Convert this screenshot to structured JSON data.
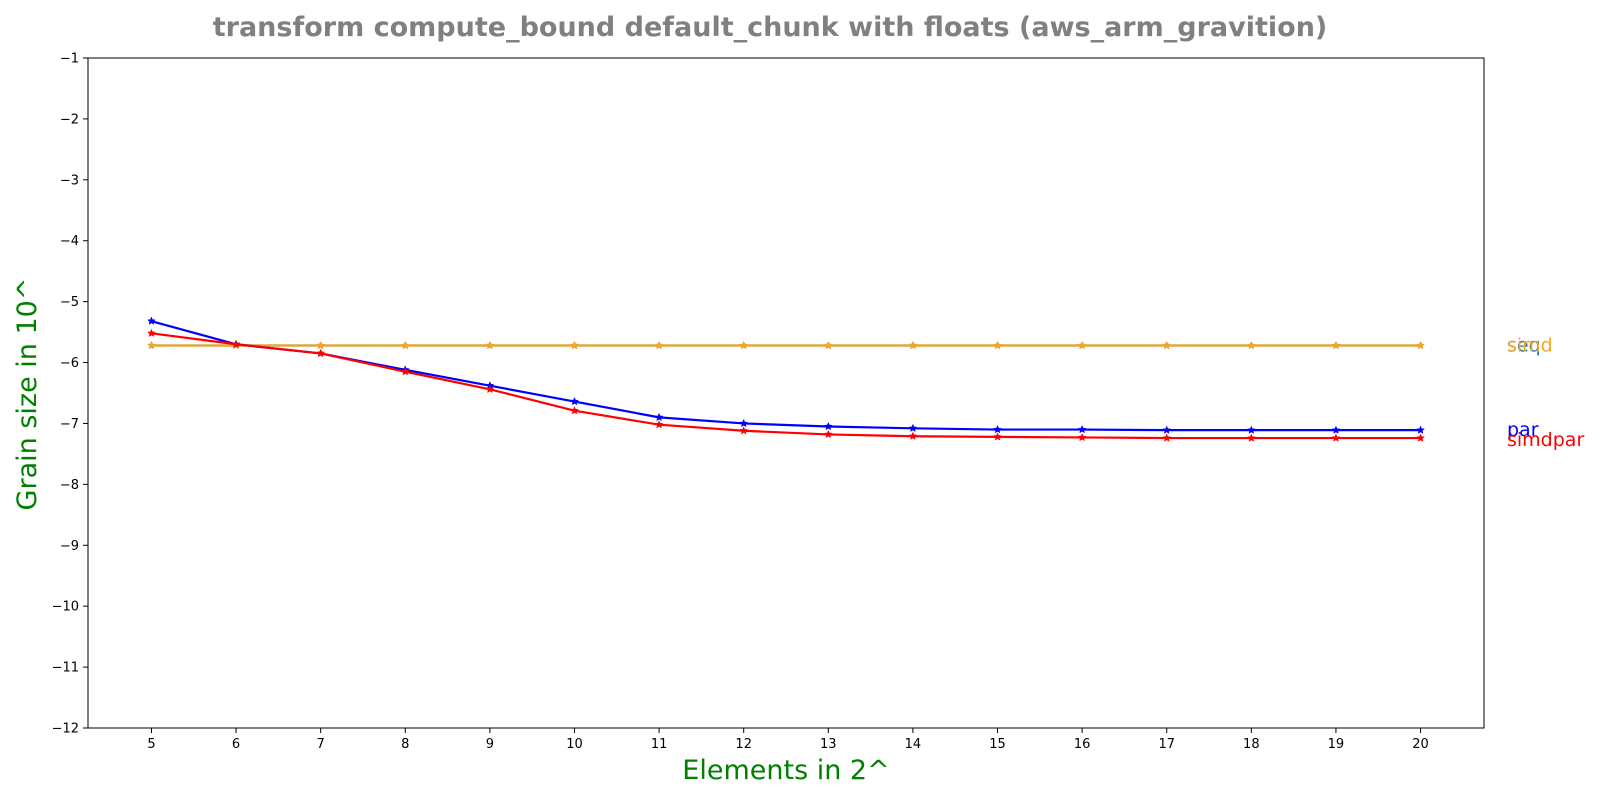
{
  "chart_data": {
    "type": "line",
    "title": "transform compute_bound default_chunk with floats  (aws_arm_gravition)",
    "xlabel": "Elements in 2^",
    "ylabel": "Grain size in 10^",
    "xlim": [
      4.25,
      20.75
    ],
    "ylim": [
      -12,
      -1
    ],
    "x_ticks": [
      "5",
      "6",
      "7",
      "8",
      "9",
      "10",
      "11",
      "12",
      "13",
      "14",
      "15",
      "16",
      "17",
      "18",
      "19",
      "20"
    ],
    "y_ticks": [
      "−1",
      "−2",
      "−3",
      "−4",
      "−5",
      "−6",
      "−7",
      "−8",
      "−9",
      "−10",
      "−11",
      "−12"
    ],
    "grid": false,
    "legend": "labels at right end of each line",
    "x": [
      5,
      6,
      7,
      8,
      9,
      10,
      11,
      12,
      13,
      14,
      15,
      16,
      17,
      18,
      19,
      20
    ],
    "series": [
      {
        "name": "seq",
        "color": "#1f77b4",
        "values": [
          -5.72,
          -5.72,
          -5.72,
          -5.72,
          -5.72,
          -5.72,
          -5.72,
          -5.72,
          -5.72,
          -5.72,
          -5.72,
          -5.72,
          -5.72,
          -5.72,
          -5.72,
          -5.72
        ]
      },
      {
        "name": "simd",
        "color": "#f5a623",
        "values": [
          -5.72,
          -5.72,
          -5.72,
          -5.72,
          -5.72,
          -5.72,
          -5.72,
          -5.72,
          -5.72,
          -5.72,
          -5.72,
          -5.72,
          -5.72,
          -5.72,
          -5.72,
          -5.72
        ]
      },
      {
        "name": "par",
        "color": "#0000ff",
        "values": [
          -5.32,
          -5.7,
          -5.85,
          -6.12,
          -6.38,
          -6.64,
          -6.9,
          -7.0,
          -7.05,
          -7.08,
          -7.1,
          -7.1,
          -7.11,
          -7.11,
          -7.11,
          -7.11
        ]
      },
      {
        "name": "simdpar",
        "color": "#ff0000",
        "values": [
          -5.52,
          -5.7,
          -5.85,
          -6.15,
          -6.44,
          -6.79,
          -7.02,
          -7.12,
          -7.18,
          -7.21,
          -7.22,
          -7.23,
          -7.24,
          -7.24,
          -7.24,
          -7.24
        ]
      }
    ],
    "colors": {
      "title": "#808080",
      "axis_label": "#008000"
    }
  }
}
